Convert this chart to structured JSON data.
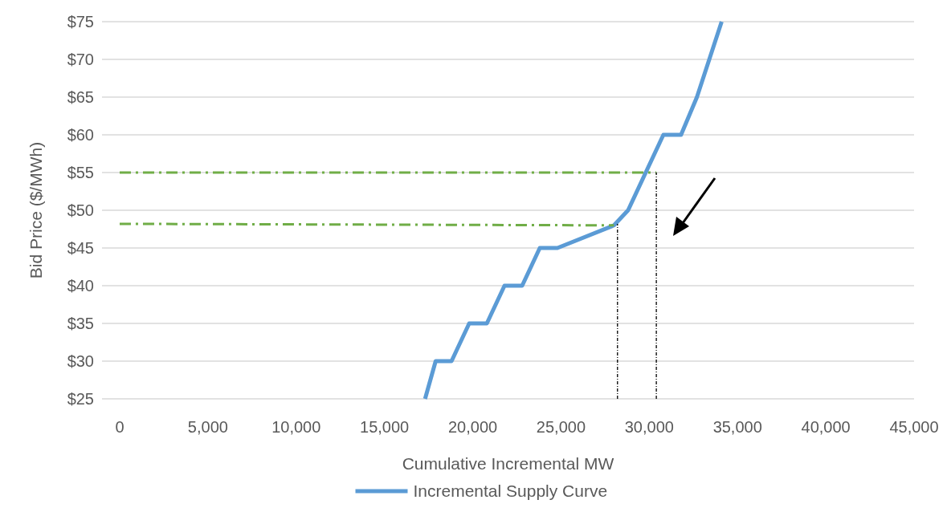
{
  "chart_data": {
    "type": "line",
    "xlabel": "Cumulative Incremental MW",
    "ylabel": "Bid Price ($/MWh)",
    "xlim": [
      -1000,
      45000
    ],
    "xticks": [
      {
        "value": 0,
        "label": "0"
      },
      {
        "value": 5000,
        "label": "5,000"
      },
      {
        "value": 10000,
        "label": "10,000"
      },
      {
        "value": 15000,
        "label": "15,000"
      },
      {
        "value": 20000,
        "label": "20,000"
      },
      {
        "value": 25000,
        "label": "25,000"
      },
      {
        "value": 30000,
        "label": "30,000"
      },
      {
        "value": 35000,
        "label": "35,000"
      },
      {
        "value": 40000,
        "label": "40,000"
      },
      {
        "value": 45000,
        "label": "45,000"
      }
    ],
    "ylim": [
      25,
      75
    ],
    "yticks": [
      {
        "value": 25,
        "label": "$25"
      },
      {
        "value": 30,
        "label": "$30"
      },
      {
        "value": 35,
        "label": "$35"
      },
      {
        "value": 40,
        "label": "$40"
      },
      {
        "value": 45,
        "label": "$45"
      },
      {
        "value": 50,
        "label": "$50"
      },
      {
        "value": 55,
        "label": "$55"
      },
      {
        "value": 60,
        "label": "$60"
      },
      {
        "value": 65,
        "label": "$65"
      },
      {
        "value": 70,
        "label": "$70"
      },
      {
        "value": 75,
        "label": "$75"
      }
    ],
    "grid": "y",
    "legend": "bottom",
    "series": [
      {
        "name": "Incremental Supply Curve",
        "color": "#5b9bd5",
        "x": [
          17300,
          17900,
          18800,
          19800,
          20800,
          21800,
          22800,
          23800,
          24800,
          28000,
          28800,
          30800,
          31800,
          32700,
          34100
        ],
        "values": [
          25,
          30,
          30,
          35,
          35,
          40,
          40,
          45,
          45,
          48,
          50,
          60,
          60,
          65,
          75
        ]
      },
      {
        "color": "#70ad47",
        "line_style": "dashed",
        "x": [
          0,
          30400
        ],
        "values": [
          55,
          55
        ]
      },
      {
        "color": "#70ad47",
        "line_style": "dashed",
        "x": [
          0,
          28000
        ],
        "values": [
          48.2,
          48
        ]
      },
      {
        "color": "#000000",
        "line_style": "dotted",
        "x": [
          28200,
          28200
        ],
        "values": [
          25,
          48.2
        ]
      },
      {
        "color": "#000000",
        "line_style": "dotted",
        "x": [
          30400,
          30400
        ],
        "values": [
          25,
          55
        ]
      }
    ]
  }
}
